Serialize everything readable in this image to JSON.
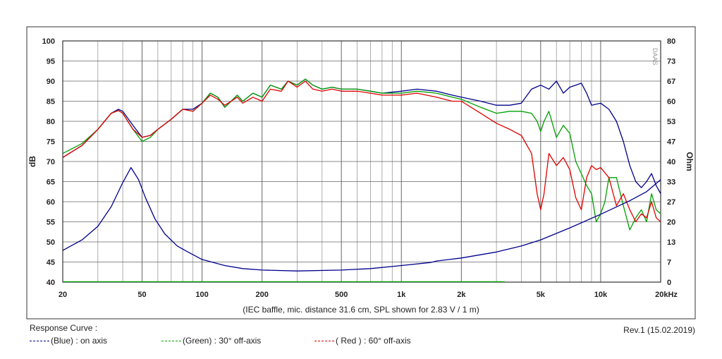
{
  "chart_data": {
    "type": "line",
    "caption": "(IEC baffle, mic. distance 31.6 cm, SPL shown for 2.83 V / 1 m)",
    "xscale": "log",
    "xlim": [
      20,
      20000
    ],
    "x_ticks": [
      {
        "v": 20,
        "label": "20"
      },
      {
        "v": 50,
        "label": "50"
      },
      {
        "v": 100,
        "label": "100"
      },
      {
        "v": 200,
        "label": "200"
      },
      {
        "v": 500,
        "label": "500"
      },
      {
        "v": 1000,
        "label": "1k"
      },
      {
        "v": 2000,
        "label": "2k"
      },
      {
        "v": 5000,
        "label": "5k"
      },
      {
        "v": 10000,
        "label": "10k"
      },
      {
        "v": 20000,
        "label": "20kHz"
      }
    ],
    "ylim": [
      40,
      100
    ],
    "ylabel": "dB",
    "y_ticks": [
      "40",
      "45",
      "50",
      "55",
      "60",
      "65",
      "70",
      "75",
      "80",
      "85",
      "90",
      "95",
      "100"
    ],
    "y2lim": [
      0,
      80
    ],
    "y2label": "Ohm",
    "y2_ticks": [
      "0",
      "7",
      "13",
      "20",
      "27",
      "33",
      "40",
      "47",
      "53",
      "60",
      "67",
      "73",
      "80"
    ],
    "grid": true,
    "watermark": "DAAS",
    "series": [
      {
        "name": "on axis",
        "legend": "(Blue)  : on axis",
        "color": "#00008b",
        "axis": "left",
        "points": [
          [
            20,
            71
          ],
          [
            25,
            74
          ],
          [
            30,
            78
          ],
          [
            35,
            82
          ],
          [
            38,
            83
          ],
          [
            40,
            82.5
          ],
          [
            45,
            79
          ],
          [
            50,
            76
          ],
          [
            55,
            76.5
          ],
          [
            60,
            78
          ],
          [
            70,
            80.5
          ],
          [
            80,
            83
          ],
          [
            90,
            83
          ],
          [
            100,
            84.5
          ],
          [
            110,
            87
          ],
          [
            120,
            86
          ],
          [
            130,
            83.5
          ],
          [
            140,
            85
          ],
          [
            150,
            86.5
          ],
          [
            160,
            85
          ],
          [
            180,
            87
          ],
          [
            200,
            86
          ],
          [
            220,
            89
          ],
          [
            250,
            88
          ],
          [
            270,
            90
          ],
          [
            300,
            89
          ],
          [
            330,
            90.5
          ],
          [
            360,
            89
          ],
          [
            400,
            88
          ],
          [
            450,
            88.5
          ],
          [
            500,
            88
          ],
          [
            600,
            88
          ],
          [
            700,
            87.5
          ],
          [
            800,
            87
          ],
          [
            1000,
            87.5
          ],
          [
            1200,
            88
          ],
          [
            1500,
            87.5
          ],
          [
            1800,
            86.5
          ],
          [
            2000,
            86
          ],
          [
            2500,
            85
          ],
          [
            3000,
            84
          ],
          [
            3500,
            84
          ],
          [
            4000,
            84.5
          ],
          [
            4500,
            88
          ],
          [
            5000,
            89
          ],
          [
            5500,
            88
          ],
          [
            6000,
            90
          ],
          [
            6500,
            87
          ],
          [
            7000,
            88.5
          ],
          [
            7500,
            89
          ],
          [
            8000,
            89.5
          ],
          [
            8500,
            87
          ],
          [
            9000,
            84
          ],
          [
            10000,
            84.5
          ],
          [
            11000,
            83
          ],
          [
            12000,
            80
          ],
          [
            13000,
            75
          ],
          [
            14000,
            69
          ],
          [
            15000,
            65
          ],
          [
            16000,
            63.5
          ],
          [
            17000,
            65
          ],
          [
            18000,
            67
          ],
          [
            19000,
            64
          ],
          [
            20000,
            62
          ]
        ]
      },
      {
        "name": "30° off-axis",
        "legend": "(Green) : 30° off-axis",
        "color": "#00a000",
        "axis": "left",
        "points": [
          [
            20,
            72
          ],
          [
            25,
            74.5
          ],
          [
            30,
            78
          ],
          [
            35,
            82
          ],
          [
            38,
            82.7
          ],
          [
            40,
            82
          ],
          [
            45,
            78
          ],
          [
            50,
            75
          ],
          [
            55,
            76
          ],
          [
            60,
            78
          ],
          [
            70,
            80.5
          ],
          [
            80,
            83
          ],
          [
            90,
            82.5
          ],
          [
            100,
            84.5
          ],
          [
            110,
            87
          ],
          [
            120,
            86
          ],
          [
            130,
            83.5
          ],
          [
            140,
            85
          ],
          [
            150,
            86.5
          ],
          [
            160,
            85
          ],
          [
            180,
            87
          ],
          [
            200,
            86
          ],
          [
            220,
            89
          ],
          [
            250,
            88
          ],
          [
            270,
            90
          ],
          [
            300,
            89
          ],
          [
            330,
            90.5
          ],
          [
            360,
            89
          ],
          [
            400,
            88
          ],
          [
            450,
            88.5
          ],
          [
            500,
            88
          ],
          [
            600,
            88
          ],
          [
            700,
            87.5
          ],
          [
            800,
            87
          ],
          [
            1000,
            87
          ],
          [
            1200,
            87.5
          ],
          [
            1500,
            87
          ],
          [
            1800,
            86
          ],
          [
            2000,
            85.5
          ],
          [
            2500,
            83.5
          ],
          [
            3000,
            82
          ],
          [
            3500,
            82.5
          ],
          [
            4000,
            82.5
          ],
          [
            4500,
            82
          ],
          [
            4800,
            80
          ],
          [
            5000,
            77.5
          ],
          [
            5200,
            80
          ],
          [
            5500,
            82.5
          ],
          [
            6000,
            76
          ],
          [
            6500,
            79
          ],
          [
            7000,
            77
          ],
          [
            7500,
            70
          ],
          [
            8000,
            67
          ],
          [
            8500,
            64
          ],
          [
            9000,
            62
          ],
          [
            9500,
            55
          ],
          [
            10000,
            57
          ],
          [
            10500,
            60
          ],
          [
            11000,
            66
          ],
          [
            12000,
            66
          ],
          [
            13000,
            59
          ],
          [
            14000,
            53
          ],
          [
            15000,
            56
          ],
          [
            16000,
            58
          ],
          [
            17000,
            55
          ],
          [
            18000,
            62
          ],
          [
            19000,
            58
          ],
          [
            20000,
            57
          ]
        ]
      },
      {
        "name": "60° off-axis",
        "legend": "( Red ) : 60° off-axis",
        "color": "#e00000",
        "axis": "left",
        "points": [
          [
            20,
            71
          ],
          [
            25,
            74
          ],
          [
            30,
            78
          ],
          [
            35,
            82
          ],
          [
            38,
            82.7
          ],
          [
            40,
            82
          ],
          [
            45,
            78
          ],
          [
            50,
            76
          ],
          [
            55,
            76.5
          ],
          [
            60,
            78
          ],
          [
            70,
            80.5
          ],
          [
            80,
            83
          ],
          [
            90,
            82.5
          ],
          [
            100,
            84.5
          ],
          [
            110,
            86.5
          ],
          [
            120,
            85.5
          ],
          [
            130,
            84
          ],
          [
            140,
            85
          ],
          [
            150,
            86
          ],
          [
            160,
            84.5
          ],
          [
            180,
            86
          ],
          [
            200,
            85
          ],
          [
            220,
            88
          ],
          [
            250,
            87.5
          ],
          [
            270,
            90
          ],
          [
            300,
            88.5
          ],
          [
            330,
            90
          ],
          [
            360,
            88
          ],
          [
            400,
            87.5
          ],
          [
            450,
            88
          ],
          [
            500,
            87.5
          ],
          [
            600,
            87.5
          ],
          [
            700,
            87
          ],
          [
            800,
            86.5
          ],
          [
            1000,
            86.5
          ],
          [
            1200,
            87
          ],
          [
            1500,
            86
          ],
          [
            1800,
            85
          ],
          [
            2000,
            85
          ],
          [
            2500,
            82
          ],
          [
            3000,
            79.5
          ],
          [
            3500,
            78
          ],
          [
            4000,
            76.5
          ],
          [
            4500,
            72
          ],
          [
            4800,
            62
          ],
          [
            5000,
            58
          ],
          [
            5200,
            62
          ],
          [
            5500,
            72
          ],
          [
            6000,
            69
          ],
          [
            6500,
            71
          ],
          [
            7000,
            68
          ],
          [
            7500,
            61
          ],
          [
            8000,
            58
          ],
          [
            8500,
            66
          ],
          [
            9000,
            69
          ],
          [
            9500,
            68
          ],
          [
            10000,
            68.5
          ],
          [
            11000,
            66
          ],
          [
            12000,
            59
          ],
          [
            13000,
            62
          ],
          [
            14000,
            58
          ],
          [
            15000,
            55
          ],
          [
            16000,
            57
          ],
          [
            17000,
            56
          ],
          [
            18000,
            60
          ],
          [
            19000,
            56
          ],
          [
            20000,
            55
          ]
        ]
      },
      {
        "name": "impedance",
        "color": "#00008b",
        "axis": "right",
        "points": [
          [
            20,
            10.5
          ],
          [
            25,
            14
          ],
          [
            30,
            18.5
          ],
          [
            35,
            25
          ],
          [
            40,
            33
          ],
          [
            44,
            38
          ],
          [
            48,
            34
          ],
          [
            52,
            28
          ],
          [
            58,
            21
          ],
          [
            65,
            16
          ],
          [
            75,
            12
          ],
          [
            85,
            10
          ],
          [
            100,
            7.5
          ],
          [
            130,
            5.5
          ],
          [
            160,
            4.5
          ],
          [
            200,
            4
          ],
          [
            300,
            3.7
          ],
          [
            500,
            4
          ],
          [
            700,
            4.5
          ],
          [
            1000,
            5.5
          ],
          [
            1400,
            6.5
          ],
          [
            1500,
            7
          ],
          [
            2000,
            8
          ],
          [
            3000,
            10
          ],
          [
            4000,
            12
          ],
          [
            5000,
            14
          ],
          [
            7000,
            18
          ],
          [
            10000,
            22.5
          ],
          [
            14000,
            27
          ],
          [
            17000,
            30
          ],
          [
            20000,
            34
          ]
        ]
      }
    ]
  },
  "legend_title": "Response Curve :",
  "legend_items": [
    "(Blue)  : on axis",
    "(Green) : 30° off-axis",
    "( Red ) : 60° off-axis"
  ],
  "revision": "Rev.1 (15.02.2019)"
}
